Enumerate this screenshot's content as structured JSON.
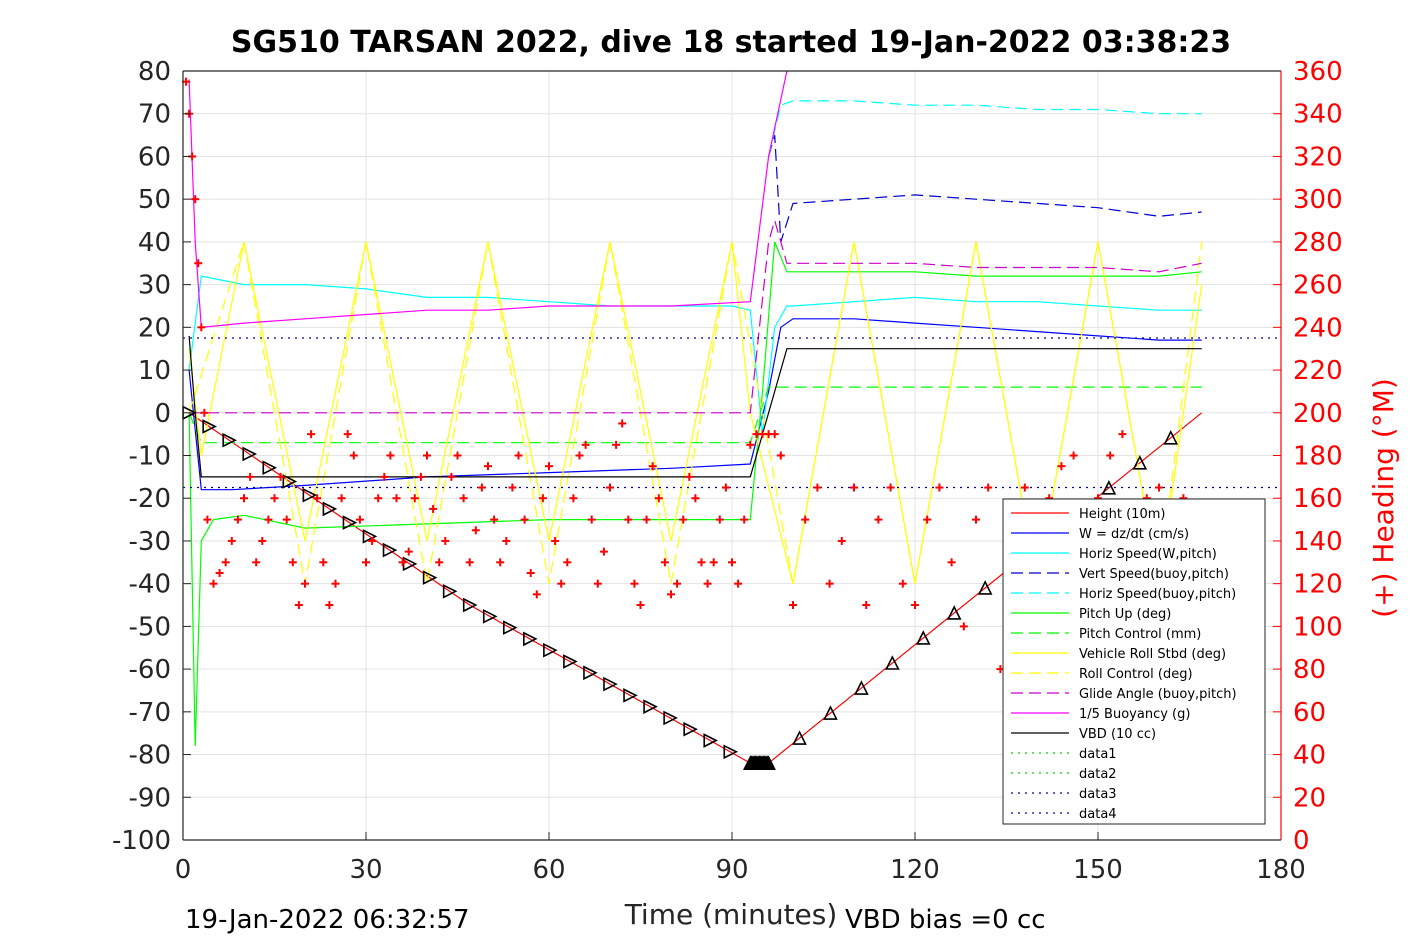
{
  "chart_data": {
    "type": "line",
    "title": "SG510 TARSAN 2022, dive 18 started 19-Jan-2022 03:38:23",
    "xlabel": "Time (minutes)",
    "ylabel_right": "(+) Heading (°M)",
    "footer_left": "19-Jan-2022 06:32:57",
    "footer_right": "VBD bias =0 cc",
    "xlim": [
      0,
      180
    ],
    "ylim": [
      -100,
      80
    ],
    "ylim_right": [
      0,
      360
    ],
    "x_ticks": [
      "0",
      "30",
      "60",
      "90",
      "120",
      "150",
      "180"
    ],
    "y_ticks": [
      "80",
      "70",
      "60",
      "50",
      "40",
      "30",
      "20",
      "10",
      "0",
      "-10",
      "-20",
      "-30",
      "-40",
      "-50",
      "-60",
      "-70",
      "-80",
      "-90",
      "-100"
    ],
    "y_ticks_right": [
      "360",
      "340",
      "320",
      "300",
      "280",
      "260",
      "240",
      "220",
      "200",
      "180",
      "160",
      "140",
      "120",
      "100",
      "80",
      "60",
      "40",
      "20",
      "0"
    ],
    "grid": true,
    "legend_position": "lower-right",
    "series": [
      {
        "name": "Height (10m)",
        "color": "#ff0000",
        "style": "solid",
        "x": [
          1,
          47,
          93,
          96,
          167
        ],
        "y": [
          0,
          -45,
          -82,
          -82,
          0
        ]
      },
      {
        "name": "W = dz/dt (cm/s)",
        "color": "#0000ff",
        "style": "solid",
        "x": [
          1,
          3,
          8,
          20,
          40,
          60,
          80,
          93,
          96,
          98,
          100,
          110,
          120,
          130,
          140,
          150,
          160,
          167
        ],
        "y": [
          10,
          -18,
          -18,
          -17,
          -15,
          -14,
          -13,
          -12,
          5,
          20,
          22,
          22,
          21,
          20,
          19,
          18,
          17,
          17
        ]
      },
      {
        "name": "Horiz Speed(W,pitch)",
        "color": "#00ffff",
        "style": "solid",
        "x": [
          1,
          3,
          10,
          20,
          30,
          40,
          50,
          60,
          70,
          80,
          90,
          93,
          95,
          97,
          99,
          100,
          110,
          120,
          130,
          140,
          150,
          160,
          167
        ],
        "y": [
          10,
          32,
          30,
          30,
          29,
          27,
          27,
          26,
          25,
          25,
          25,
          24,
          -5,
          20,
          25,
          25,
          26,
          27,
          26,
          26,
          25,
          24,
          24
        ]
      },
      {
        "name": "Vert Speed(buoy,pitch)",
        "color": "#0000cc",
        "style": "dashed",
        "x": [
          96,
          97,
          98,
          100,
          110,
          120,
          130,
          140,
          150,
          160,
          167
        ],
        "y": [
          60,
          65,
          40,
          49,
          50,
          51,
          50,
          49,
          48,
          46,
          47
        ]
      },
      {
        "name": "Horiz Speed(buoy,pitch)",
        "color": "#00ffff",
        "style": "dashed",
        "x": [
          96,
          98,
          100,
          110,
          120,
          130,
          140,
          150,
          160,
          167
        ],
        "y": [
          60,
          72,
          73,
          73,
          72,
          72,
          71,
          71,
          70,
          70
        ]
      },
      {
        "name": "Pitch Up (deg)",
        "color": "#00ff00",
        "style": "solid",
        "x": [
          1,
          2,
          3,
          5,
          10,
          20,
          40,
          60,
          80,
          93,
          95,
          97,
          99,
          100,
          110,
          120,
          130,
          140,
          150,
          160,
          167
        ],
        "y": [
          0,
          -78,
          -30,
          -25,
          -24,
          -27,
          -26,
          -25,
          -25,
          -25,
          5,
          40,
          33,
          33,
          33,
          33,
          32,
          32,
          32,
          32,
          33
        ]
      },
      {
        "name": "Pitch Control (mm)",
        "color": "#00ff00",
        "style": "dashed",
        "x": [
          1,
          3,
          20,
          40,
          60,
          80,
          93,
          96,
          100,
          120,
          140,
          160,
          167
        ],
        "y": [
          0,
          -7,
          -7,
          -7,
          -7,
          -7,
          -7,
          6,
          6,
          6,
          6,
          6,
          6
        ]
      },
      {
        "name": "Vehicle Roll Stbd (deg)",
        "color": "#ffff00",
        "style": "solid",
        "x": [
          1,
          3,
          10,
          20,
          30,
          40,
          50,
          60,
          70,
          80,
          90,
          93,
          100,
          110,
          120,
          130,
          140,
          150,
          160,
          167
        ],
        "y": [
          15,
          -10,
          40,
          -30,
          40,
          -30,
          40,
          -30,
          40,
          -30,
          40,
          0,
          -40,
          40,
          -40,
          40,
          -40,
          40,
          -40,
          30
        ]
      },
      {
        "name": "Roll Control (deg)",
        "color": "#ffff00",
        "style": "dashed",
        "x": [
          1,
          10,
          20,
          30,
          40,
          50,
          60,
          70,
          80,
          90,
          100,
          110,
          120,
          130,
          140,
          150,
          160,
          167
        ],
        "y": [
          0,
          40,
          -40,
          40,
          -40,
          40,
          -40,
          40,
          -40,
          40,
          -40,
          40,
          -40,
          40,
          -40,
          40,
          -40,
          40
        ]
      },
      {
        "name": "Glide Angle (buoy,pitch)",
        "color": "#cc00cc",
        "style": "dashed",
        "x": [
          1,
          20,
          40,
          60,
          80,
          93,
          96,
          97,
          99,
          100,
          110,
          120,
          130,
          140,
          150,
          160,
          167
        ],
        "y": [
          0,
          0,
          0,
          0,
          0,
          0,
          40,
          45,
          35,
          35,
          35,
          35,
          34,
          34,
          34,
          33,
          35
        ]
      },
      {
        "name": "1/5 Buoyancy (g)",
        "color": "#ff00ff",
        "style": "solid",
        "x": [
          1,
          2,
          3,
          10,
          20,
          30,
          40,
          50,
          60,
          70,
          80,
          93,
          96,
          99
        ],
        "y": [
          78,
          40,
          20,
          21,
          22,
          23,
          24,
          24,
          25,
          25,
          25,
          26,
          60,
          80
        ]
      },
      {
        "name": "VBD (10 cc)",
        "color": "#000000",
        "style": "solid",
        "x": [
          1,
          2,
          3,
          20,
          40,
          60,
          80,
          93,
          96,
          99,
          110,
          130,
          150,
          167
        ],
        "y": [
          18,
          0,
          -15,
          -15,
          -15,
          -15,
          -15,
          -15,
          0,
          15,
          15,
          15,
          15,
          15
        ]
      },
      {
        "name": "data1",
        "color": "#00cc00",
        "style": "dotted",
        "x": [],
        "y": []
      },
      {
        "name": "data2",
        "color": "#00cc00",
        "style": "dotted",
        "x": [],
        "y": []
      },
      {
        "name": "data3",
        "color": "#0000aa",
        "style": "dotted",
        "x": [
          0,
          180
        ],
        "y": [
          17.5,
          17.5
        ]
      },
      {
        "name": "data4",
        "color": "#0000aa",
        "style": "dotted",
        "x": [
          0,
          180
        ],
        "y": [
          -17.5,
          -17.5
        ]
      }
    ],
    "heading_points": {
      "name": "Heading",
      "color": "#ff0000",
      "x": [
        0.5,
        1,
        1.5,
        2,
        2.5,
        3,
        3.5,
        4,
        5,
        6,
        7,
        8,
        9,
        10,
        11,
        12,
        13,
        14,
        15,
        16,
        17,
        18,
        19,
        20,
        21,
        22,
        23,
        24,
        25,
        26,
        27,
        28,
        29,
        30,
        31,
        32,
        33,
        34,
        35,
        36,
        37,
        38,
        39,
        40,
        41,
        42,
        43,
        44,
        45,
        46,
        47,
        48,
        49,
        50,
        51,
        52,
        53,
        54,
        55,
        56,
        57,
        58,
        59,
        60,
        61,
        62,
        63,
        64,
        65,
        66,
        67,
        68,
        69,
        70,
        71,
        72,
        73,
        74,
        75,
        76,
        77,
        78,
        79,
        80,
        81,
        82,
        83,
        84,
        85,
        86,
        87,
        88,
        89,
        90,
        91,
        92,
        93,
        94,
        95,
        96,
        97,
        98,
        100,
        102,
        104,
        106,
        108,
        110,
        112,
        114,
        116,
        118,
        120,
        122,
        124,
        126,
        128,
        130,
        132,
        134,
        136,
        138,
        140,
        142,
        144,
        146,
        148,
        150,
        152,
        154,
        156,
        158,
        160,
        162,
        164,
        166
      ],
      "y": [
        355,
        340,
        320,
        300,
        270,
        240,
        200,
        150,
        120,
        125,
        130,
        140,
        150,
        160,
        170,
        130,
        140,
        150,
        160,
        170,
        150,
        130,
        110,
        120,
        190,
        160,
        130,
        110,
        120,
        160,
        190,
        180,
        150,
        130,
        140,
        160,
        170,
        180,
        160,
        130,
        135,
        160,
        170,
        180,
        155,
        130,
        140,
        170,
        180,
        160,
        130,
        145,
        165,
        175,
        150,
        130,
        140,
        165,
        180,
        150,
        125,
        115,
        160,
        175,
        140,
        120,
        130,
        160,
        180,
        185,
        150,
        120,
        135,
        165,
        185,
        195,
        150,
        120,
        110,
        150,
        175,
        160,
        130,
        115,
        120,
        150,
        170,
        160,
        130,
        120,
        130,
        150,
        165,
        130,
        120,
        150,
        185,
        190,
        190,
        190,
        190,
        180,
        110,
        150,
        165,
        120,
        140,
        165,
        110,
        150,
        165,
        120,
        110,
        150,
        165,
        130,
        100,
        150,
        165,
        80,
        150,
        165,
        110,
        160,
        175,
        180,
        140,
        160,
        180,
        190,
        130,
        160,
        165,
        150,
        160,
        150
      ]
    }
  }
}
